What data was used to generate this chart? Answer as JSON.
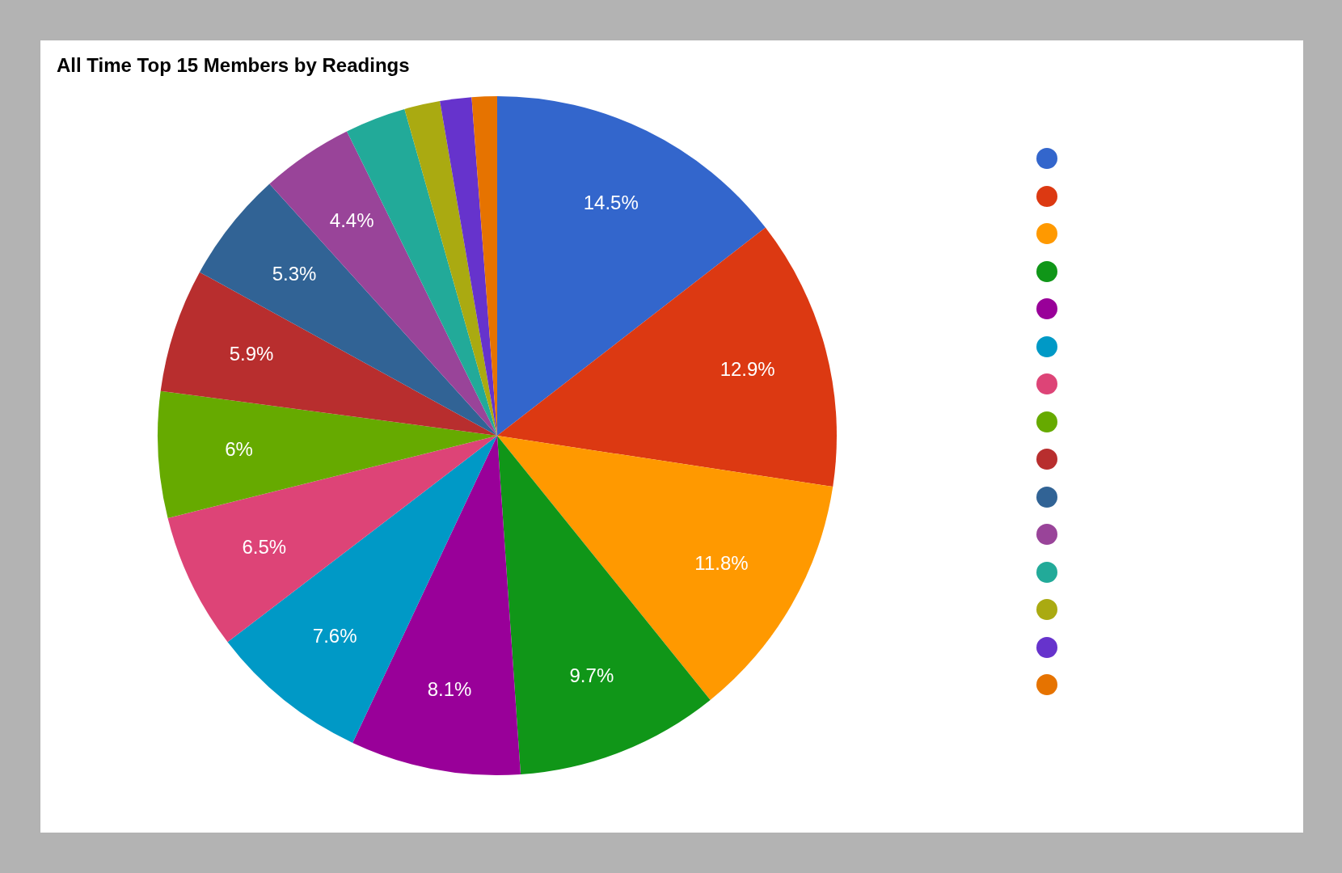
{
  "chart_data": {
    "type": "pie",
    "title": "All Time Top 15 Members by Readings",
    "categories": [
      null,
      null,
      null,
      null,
      null,
      null,
      null,
      null,
      null,
      null,
      null,
      null,
      null,
      null,
      null
    ],
    "values": [
      14.5,
      12.9,
      11.8,
      9.7,
      8.1,
      7.6,
      6.5,
      6,
      5.9,
      5.3,
      4.4,
      2.9,
      1.7,
      1.5,
      1.2
    ],
    "value_labels": [
      "14.5%",
      "12.9%",
      "11.8%",
      "9.7%",
      "8.1%",
      "7.6%",
      "6.5%",
      "6%",
      "5.9%",
      "5.3%",
      "4.4%",
      null,
      null,
      null,
      null
    ],
    "colors": [
      "#3366cc",
      "#dc3912",
      "#ff9900",
      "#109618",
      "#990099",
      "#0099c6",
      "#dd4477",
      "#66aa00",
      "#b82e2e",
      "#316395",
      "#994499",
      "#22aa99",
      "#aaaa11",
      "#6633cc",
      "#e67300"
    ]
  }
}
